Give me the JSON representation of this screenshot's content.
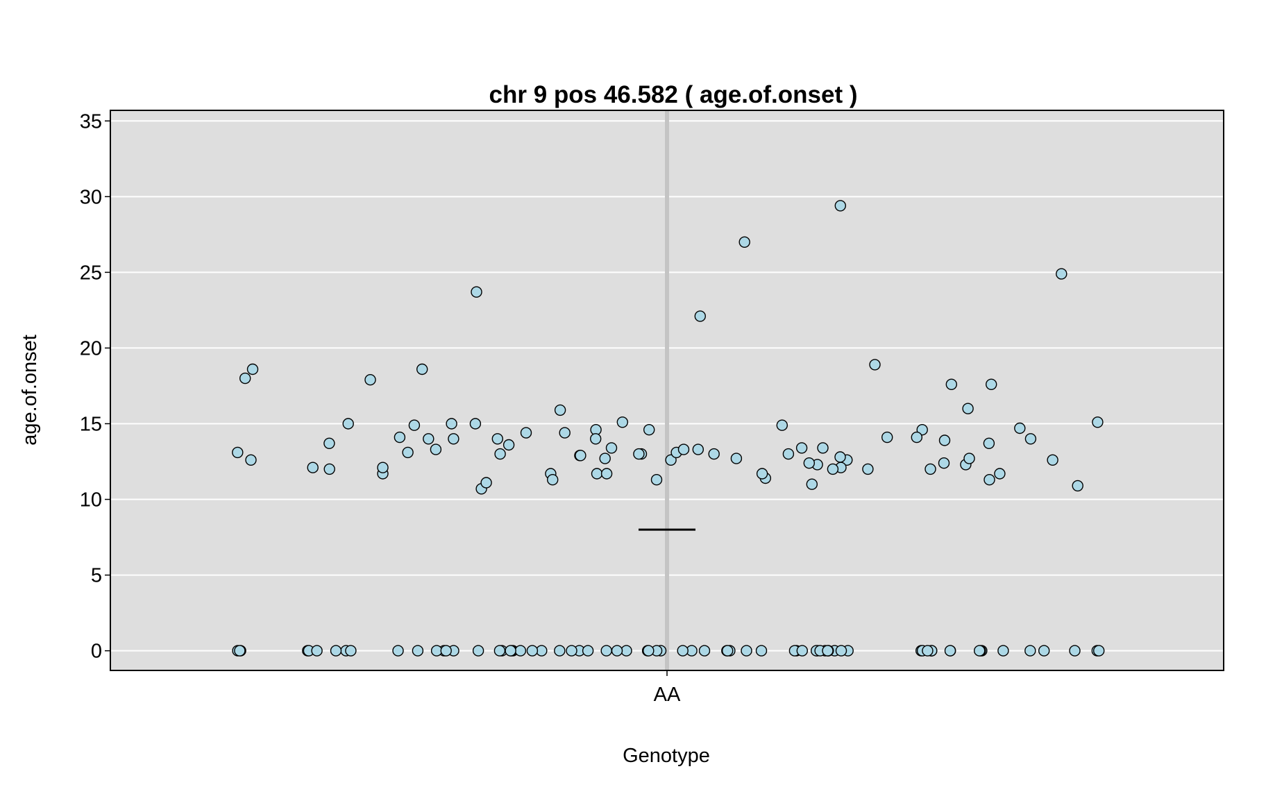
{
  "chart_data": {
    "type": "scatter",
    "title": "chr 9 pos 46.582 ( age.of.onset )",
    "xlabel": "Genotype",
    "ylabel": "age.of.onset",
    "categories": [
      "AA"
    ],
    "ylim": [
      -1.3,
      35.7
    ],
    "yticks": [
      0,
      5,
      10,
      15,
      20,
      25,
      30,
      35
    ],
    "grid": true,
    "background_color": "#dedede",
    "point_color": "#add8e6",
    "point_edge_color": "#000000",
    "mean_line": {
      "category": "AA",
      "value": 8.0
    },
    "series": [
      {
        "category": "AA",
        "values": [
          13.4,
          14.0,
          14.9,
          15.1,
          13.4,
          12.3,
          11.7,
          11.7,
          12.6,
          17.6,
          18.9,
          14.4,
          14.6,
          14.1,
          12.7,
          13.3,
          14.9,
          14.1,
          11.3,
          12.3,
          12.0,
          13.0,
          12.0,
          11.7,
          15.0,
          11.3,
          14.0,
          13.7,
          11.7,
          12.7,
          13.9,
          12.1,
          17.9,
          13.6,
          15.9,
          12.6,
          10.9,
          13.0,
          14.1,
          14.0,
          13.4,
          17.6,
          12.4,
          13.0,
          13.3,
          16.0,
          12.1,
          13.7,
          27.0,
          12.1,
          12.0,
          12.9,
          29.4,
          14.0,
          14.4,
          12.9,
          14.6,
          12.6,
          11.7,
          18.6,
          15.0,
          15.0,
          11.0,
          13.1,
          10.7,
          23.7,
          14.0,
          18.6,
          12.0,
          14.6,
          22.1,
          12.7,
          11.4,
          12.8,
          12.6,
          13.0,
          15.1,
          13.1,
          12.4,
          11.1,
          11.3,
          24.9,
          13.1,
          13.3,
          14.7,
          11.7,
          18.0,
          13.0,
          0,
          0,
          0,
          0,
          0,
          0,
          0,
          0,
          0,
          0,
          0,
          0,
          0,
          0,
          0,
          0,
          0,
          0,
          0,
          0,
          0,
          0,
          0,
          0,
          0,
          0,
          0,
          0,
          0,
          0,
          0,
          0,
          0,
          0,
          0,
          0,
          0,
          0,
          0,
          0,
          0,
          0,
          0,
          0,
          0,
          0,
          0,
          0,
          0,
          0,
          0,
          0,
          0,
          0,
          0,
          0,
          0,
          0,
          0,
          0,
          0,
          0,
          0,
          0,
          0,
          0,
          0,
          0,
          0,
          0,
          0,
          0,
          0
        ]
      }
    ]
  }
}
